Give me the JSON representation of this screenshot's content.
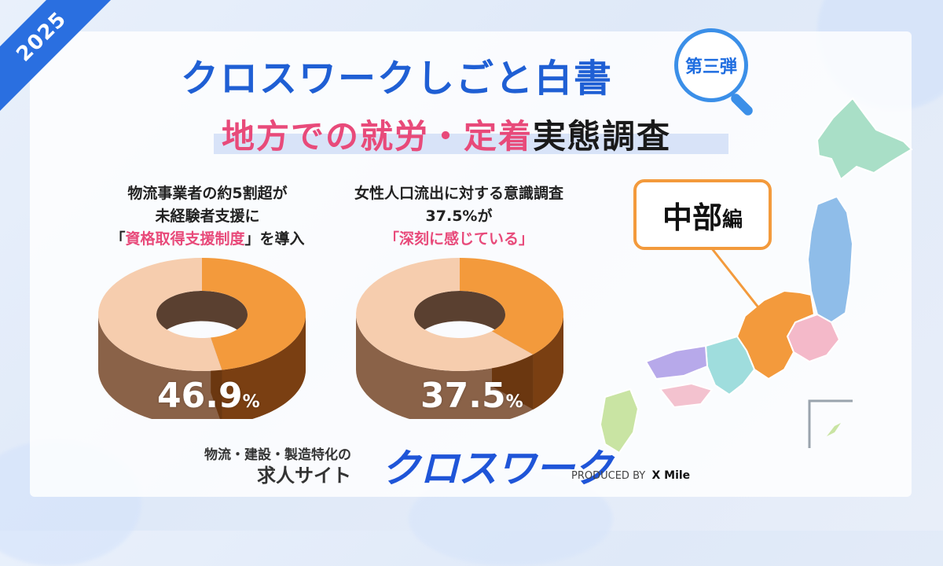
{
  "year": "2025",
  "title": "クロスワークしごと白書",
  "badge": "第三弾",
  "subtitle": {
    "pink": "地方での就労・定着",
    "dark": "実態調査"
  },
  "left_block": {
    "line1": "物流事業者の約5割超が",
    "line2": "未経験者支援に",
    "line3_pre": "「",
    "line3_hl": "資格取得支援制度",
    "line3_post": "」を導入",
    "pct": "46.9",
    "unit": "%"
  },
  "right_block": {
    "line1": "女性人口流出に対する意識調査",
    "line2": "37.5%が",
    "line3_hl": "「深刻に感じている」",
    "pct": "37.5",
    "unit": "%"
  },
  "callout": {
    "main": "中部",
    "suffix": "編"
  },
  "footer": {
    "line1": "物流・建設・製造特化の",
    "line2": "求人サイト",
    "brand": "クロスワーク",
    "produced_by": "PRODUCED BY",
    "company": "X Mile"
  },
  "colors": {
    "highlight": "#f39a3c",
    "rest": "#f6cdae",
    "title_blue": "#1f5fd4",
    "pink": "#e84a7a"
  },
  "chart_data": [
    {
      "type": "pie",
      "categories": [
        "資格取得支援制度",
        ""
      ],
      "values": [
        46.9,
        53.1
      ]
    },
    {
      "type": "pie",
      "categories": [
        "深刻に感じている",
        ""
      ],
      "values": [
        37.5,
        62.5
      ]
    }
  ]
}
